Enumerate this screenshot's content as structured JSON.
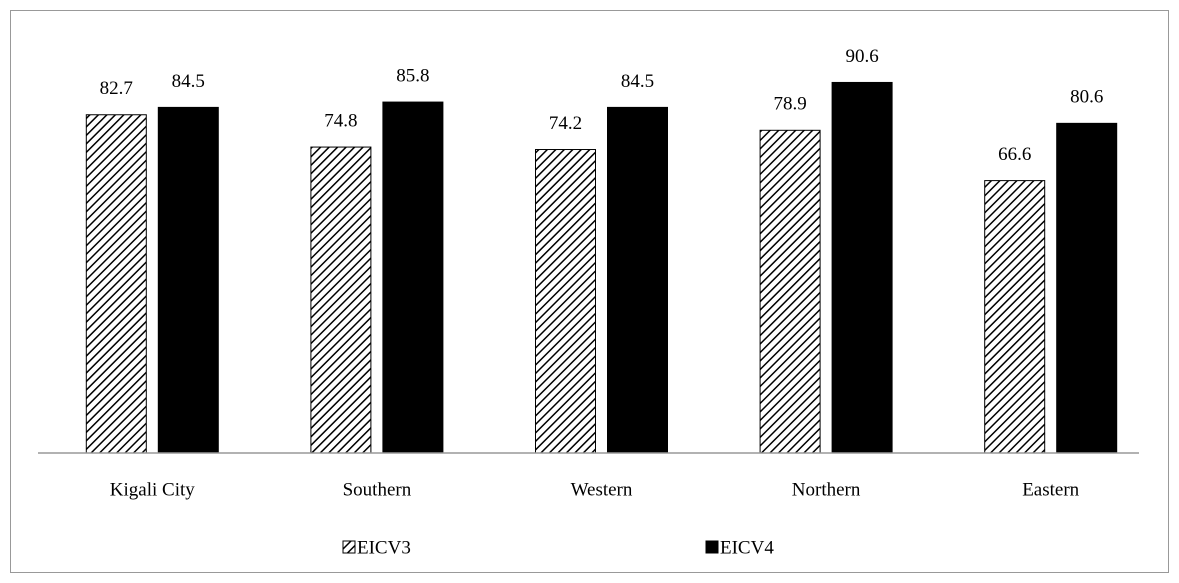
{
  "chart_data": {
    "type": "bar",
    "categories": [
      "Kigali City",
      "Southern",
      "Western",
      "Northern",
      "Eastern"
    ],
    "series": [
      {
        "name": "EICV3",
        "color": "#000000",
        "hatch": true,
        "values": [
          82.7,
          74.8,
          74.2,
          78.9,
          66.6
        ]
      },
      {
        "name": "EICV4",
        "color": "#000000",
        "hatch": false,
        "values": [
          84.5,
          85.8,
          84.5,
          90.6,
          80.6
        ]
      }
    ],
    "ylim": [
      0,
      100
    ],
    "grid": false,
    "legend": "bottom"
  }
}
